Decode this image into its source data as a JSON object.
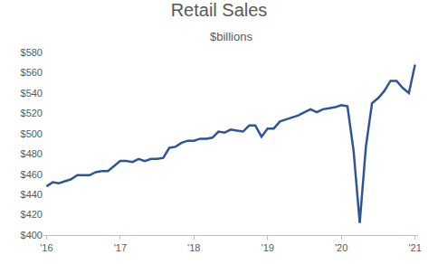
{
  "chart_data": {
    "type": "line",
    "title": "Retail Sales",
    "subtitle": "$billions",
    "categories": [
      "'16",
      null,
      null,
      null,
      null,
      null,
      null,
      null,
      null,
      null,
      null,
      null,
      "'17",
      null,
      null,
      null,
      null,
      null,
      null,
      null,
      null,
      null,
      null,
      null,
      "'18",
      null,
      null,
      null,
      null,
      null,
      null,
      null,
      null,
      null,
      null,
      null,
      "'19",
      null,
      null,
      null,
      null,
      null,
      null,
      null,
      null,
      null,
      null,
      null,
      "'20",
      null,
      null,
      null,
      null,
      null,
      null,
      null,
      null,
      null,
      null,
      null,
      "'21"
    ],
    "values": [
      448,
      452,
      451,
      453,
      455,
      459,
      459,
      459,
      462,
      463,
      463,
      468,
      473,
      473,
      472,
      475,
      473,
      475,
      475,
      476,
      486,
      487,
      491,
      493,
      493,
      495,
      495,
      496,
      502,
      501,
      504,
      503,
      502,
      508,
      508,
      497,
      505,
      505,
      512,
      514,
      516,
      518,
      521,
      524,
      521,
      524,
      525,
      526,
      528,
      527,
      483,
      412,
      487,
      530,
      535,
      542,
      552,
      552,
      545,
      540,
      568
    ],
    "color": "#2f5597",
    "ylim": [
      400,
      580
    ],
    "yticks": [
      {
        "value": 400,
        "label": "$400"
      },
      {
        "value": 420,
        "label": "$420"
      },
      {
        "value": 440,
        "label": "$440"
      },
      {
        "value": 460,
        "label": "$460"
      },
      {
        "value": 480,
        "label": "$480"
      },
      {
        "value": 500,
        "label": "$500"
      },
      {
        "value": 520,
        "label": "$520"
      },
      {
        "value": 540,
        "label": "$540"
      },
      {
        "value": 560,
        "label": "$560"
      },
      {
        "value": 580,
        "label": "$580"
      }
    ],
    "grid": false
  }
}
